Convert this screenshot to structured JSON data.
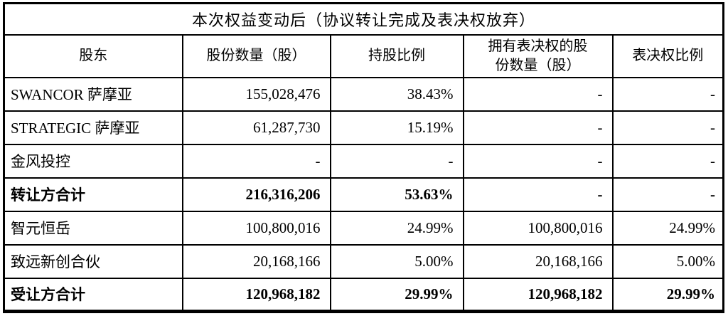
{
  "table": {
    "title": "本次权益变动后（协议转让完成及表决权放弃）",
    "columns": [
      "股东",
      "股份数量（股）",
      "持股比例",
      "拥有表决权的股份数量（股）",
      "表决权比例"
    ],
    "rows": [
      {
        "cells": [
          "SWANCOR 萨摩亚",
          "155,028,476",
          "38.43%",
          "-",
          "-"
        ],
        "bold": false
      },
      {
        "cells": [
          "STRATEGIC 萨摩亚",
          "61,287,730",
          "15.19%",
          "-",
          "-"
        ],
        "bold": false
      },
      {
        "cells": [
          "金风投控",
          "-",
          "-",
          "-",
          "-"
        ],
        "bold": false
      },
      {
        "cells": [
          "转让方合计",
          "216,316,206",
          "53.63%",
          "-",
          "-"
        ],
        "bold": true
      },
      {
        "cells": [
          "智元恒岳",
          "100,800,016",
          "24.99%",
          "100,800,016",
          "24.99%"
        ],
        "bold": false
      },
      {
        "cells": [
          "致远新创合伙",
          "20,168,166",
          "5.00%",
          "20,168,166",
          "5.00%"
        ],
        "bold": false
      },
      {
        "cells": [
          "受让方合计",
          "120,968,182",
          "29.99%",
          "120,968,182",
          "29.99%"
        ],
        "bold": true
      }
    ]
  },
  "colors": {
    "text": "#000000",
    "border": "#000000",
    "background": "#ffffff"
  }
}
